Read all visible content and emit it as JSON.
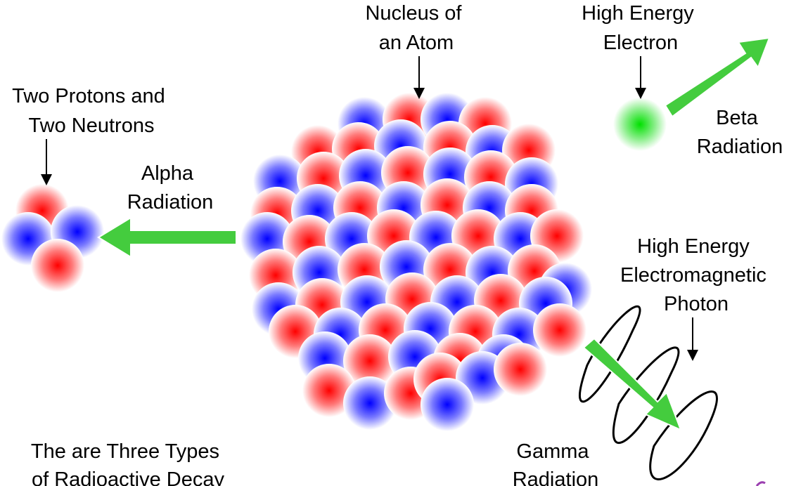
{
  "labels": {
    "nucleus": [
      "Nucleus of",
      "an Atom"
    ],
    "alpha_particle": [
      "Two Protons and",
      "Two Neutrons"
    ],
    "alpha_radiation": [
      "Alpha",
      "Radiation"
    ],
    "electron": [
      "High Energy",
      "Electron"
    ],
    "beta_radiation": [
      "Beta",
      "Radiation"
    ],
    "photon": [
      "High Energy",
      "Electromagnetic",
      "Photon"
    ],
    "gamma_radiation": [
      "Gamma",
      "Radiation"
    ],
    "caption": [
      "The are Three Types",
      "of Radioactive Decay"
    ]
  },
  "colors": {
    "proton": "#ff0000",
    "neutron": "#0000ff",
    "electron": "#00e000",
    "arrow": "#44cc3e",
    "arrow_outline": "#ffffff",
    "wave": "#000000",
    "text": "#000000"
  },
  "particle_kinds": [
    "proton",
    "neutron"
  ],
  "decay_types": [
    "Alpha",
    "Beta",
    "Gamma"
  ]
}
